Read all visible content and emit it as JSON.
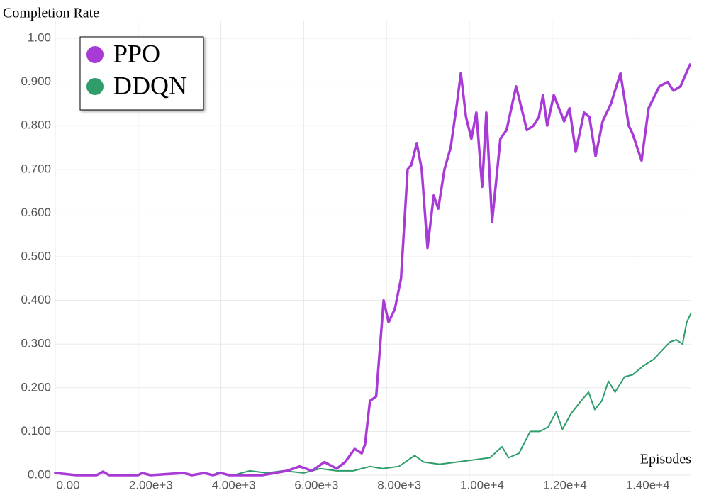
{
  "chart_data": {
    "type": "line",
    "y_label": "Completion Rate",
    "x_label": "Episodes",
    "xlim": [
      0,
      15360
    ],
    "xticks": [
      {
        "value": 0,
        "label": "0.00"
      },
      {
        "value": 2000,
        "label": "2.00e+3"
      },
      {
        "value": 4000,
        "label": "4.00e+3"
      },
      {
        "value": 6000,
        "label": "6.00e+3"
      },
      {
        "value": 8000,
        "label": "8.00e+3"
      },
      {
        "value": 10000,
        "label": "1.00e+4"
      },
      {
        "value": 12000,
        "label": "1.20e+4"
      },
      {
        "value": 14000,
        "label": "1.40e+4"
      }
    ],
    "ylim": [
      0,
      1
    ],
    "yticks": [
      {
        "value": 0,
        "label": "0.00"
      },
      {
        "value": 0.1,
        "label": "0.100"
      },
      {
        "value": 0.2,
        "label": "0.200"
      },
      {
        "value": 0.3,
        "label": "0.300"
      },
      {
        "value": 0.4,
        "label": "0.400"
      },
      {
        "value": 0.5,
        "label": "0.500"
      },
      {
        "value": 0.6,
        "label": "0.600"
      },
      {
        "value": 0.7,
        "label": "0.700"
      },
      {
        "value": 0.8,
        "label": "0.800"
      },
      {
        "value": 0.9,
        "label": "0.900"
      },
      {
        "value": 1,
        "label": "1.00"
      }
    ],
    "grid": true,
    "legend": "upper left",
    "series": [
      {
        "name": "PPO",
        "color": "#a83ad6",
        "x": [
          0,
          500,
          1000,
          1150,
          1300,
          2000,
          2100,
          2300,
          3100,
          3300,
          3600,
          3800,
          4000,
          4200,
          5000,
          5600,
          5900,
          6200,
          6500,
          6800,
          7000,
          7230,
          7400,
          7480,
          7600,
          7750,
          7930,
          8050,
          8200,
          8350,
          8510,
          8600,
          8730,
          8850,
          8990,
          9140,
          9250,
          9400,
          9550,
          9700,
          9795,
          9920,
          10050,
          10170,
          10310,
          10410,
          10550,
          10750,
          10900,
          11130,
          11390,
          11550,
          11680,
          11780,
          11880,
          12040,
          12290,
          12420,
          12570,
          12770,
          12900,
          13050,
          13220,
          13420,
          13650,
          13850,
          13950,
          14160,
          14330,
          14590,
          14790,
          14930,
          15100,
          15330
        ],
        "values": [
          0.005,
          0,
          0,
          0.008,
          0,
          0,
          0.005,
          0,
          0.005,
          0,
          0.005,
          0,
          0.005,
          0,
          0,
          0.01,
          0.02,
          0.01,
          0.03,
          0.015,
          0.03,
          0.06,
          0.05,
          0.07,
          0.17,
          0.18,
          0.4,
          0.35,
          0.38,
          0.45,
          0.7,
          0.71,
          0.76,
          0.7,
          0.52,
          0.64,
          0.61,
          0.7,
          0.75,
          0.85,
          0.92,
          0.82,
          0.77,
          0.83,
          0.66,
          0.83,
          0.58,
          0.77,
          0.79,
          0.89,
          0.79,
          0.8,
          0.82,
          0.87,
          0.8,
          0.87,
          0.81,
          0.84,
          0.74,
          0.83,
          0.82,
          0.73,
          0.81,
          0.85,
          0.92,
          0.8,
          0.78,
          0.72,
          0.84,
          0.89,
          0.9,
          0.88,
          0.89,
          0.94
        ]
      },
      {
        "name": "DDQN",
        "color": "#2e9d6a",
        "x": [
          3900,
          4300,
          4700,
          5100,
          5500,
          6000,
          6400,
          6800,
          7200,
          7600,
          7900,
          8300,
          8680,
          8900,
          9280,
          9700,
          10100,
          10500,
          10790,
          10950,
          11200,
          11470,
          11700,
          11900,
          12100,
          12250,
          12450,
          12700,
          12880,
          13030,
          13200,
          13360,
          13520,
          13750,
          13950,
          14200,
          14450,
          14650,
          14850,
          15000,
          15150,
          15250,
          15350
        ],
        "values": [
          0.005,
          0,
          0.01,
          0.005,
          0.01,
          0.005,
          0.015,
          0.01,
          0.01,
          0.02,
          0.015,
          0.02,
          0.045,
          0.03,
          0.025,
          0.03,
          0.035,
          0.04,
          0.065,
          0.04,
          0.05,
          0.1,
          0.1,
          0.11,
          0.145,
          0.105,
          0.14,
          0.17,
          0.19,
          0.15,
          0.17,
          0.215,
          0.19,
          0.225,
          0.23,
          0.25,
          0.265,
          0.285,
          0.305,
          0.31,
          0.3,
          0.35,
          0.37
        ]
      }
    ]
  }
}
